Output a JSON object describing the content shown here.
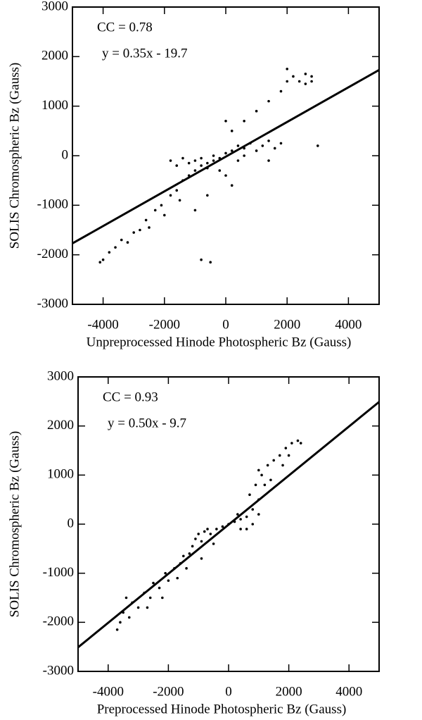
{
  "chart_data": [
    {
      "type": "scatter",
      "annotations": [
        "CC = 0.78",
        "y = 0.35x - 19.7"
      ],
      "x_label": "Unpreprocessed Hinode Photospheric Bz (Gauss)",
      "y_label": "SOLIS Chromospheric Bz  (Gauss)",
      "color": "#000000",
      "xlim": [
        -5000,
        5000
      ],
      "ylim": [
        -3000,
        3000
      ],
      "xticks": [
        -4000,
        -2000,
        0,
        2000,
        4000
      ],
      "yticks": [
        -3000,
        -2000,
        -1000,
        0,
        1000,
        2000,
        3000
      ],
      "x": [
        -4100,
        -4000,
        -3800,
        -3600,
        -3400,
        -3200,
        -3000,
        -2800,
        -2600,
        -2500,
        -2300,
        -2100,
        -2000,
        -1800,
        -1600,
        -1500,
        -1400,
        -1200,
        -1000,
        -800,
        -600,
        -400,
        -1800,
        -1600,
        -1400,
        -1200,
        -1000,
        -800,
        -600,
        -400,
        -200,
        0,
        200,
        400,
        600,
        800,
        1000,
        1200,
        1400,
        1600,
        1800,
        400,
        600,
        -200,
        0,
        200,
        -600,
        -1000,
        -800,
        -500,
        0,
        200,
        600,
        1000,
        1400,
        1800,
        2000,
        2200,
        2400,
        2600,
        2800,
        2000,
        2600,
        3000,
        1400,
        2800
      ],
      "y": [
        -2150,
        -2100,
        -1950,
        -1850,
        -1700,
        -1750,
        -1550,
        -1500,
        -1300,
        -1450,
        -1100,
        -1000,
        -1200,
        -800,
        -700,
        -900,
        -500,
        -400,
        -300,
        -200,
        -250,
        -100,
        -100,
        -200,
        -50,
        -150,
        -100,
        -50,
        -150,
        0,
        -50,
        50,
        100,
        200,
        150,
        250,
        100,
        200,
        300,
        150,
        250,
        -100,
        0,
        -300,
        -400,
        -600,
        -800,
        -1100,
        -2100,
        -2150,
        700,
        500,
        700,
        900,
        1100,
        1300,
        1500,
        1600,
        1500,
        1650,
        1600,
        1750,
        1450,
        200,
        -100,
        1500
      ],
      "fit_line": {
        "x": [
          -5000,
          5000
        ],
        "y": [
          -1769.7,
          1730.3
        ]
      }
    },
    {
      "type": "scatter",
      "annotations": [
        "CC = 0.93",
        "y = 0.50x - 9.7"
      ],
      "x_label": "Preprocessed Hinode Photospheric Bz (Gauss)",
      "y_label": "SOLIS Chromospheric Bz  (Gauss)",
      "color": "#000000",
      "xlim": [
        -5000,
        5000
      ],
      "ylim": [
        -3000,
        3000
      ],
      "xticks": [
        -4000,
        -2000,
        0,
        2000,
        4000
      ],
      "yticks": [
        -3000,
        -2000,
        -1000,
        0,
        1000,
        2000,
        3000
      ],
      "x": [
        -3700,
        -3600,
        -3500,
        -3300,
        -3200,
        -3000,
        -2800,
        -2600,
        -2500,
        -2300,
        -2100,
        -2000,
        -1800,
        -1600,
        -1500,
        -1300,
        -1200,
        -1100,
        -1000,
        -900,
        -800,
        -600,
        -400,
        -200,
        0,
        200,
        400,
        600,
        800,
        1000,
        600,
        800,
        1000,
        700,
        900,
        1100,
        1300,
        1500,
        1700,
        1900,
        2100,
        2300,
        2400,
        1800,
        2000,
        1200,
        1000,
        1400,
        -3400,
        -2700,
        -2200,
        -1700,
        -1400,
        -900,
        -500,
        400,
        300,
        -700
      ],
      "y": [
        -2150,
        -2000,
        -1800,
        -1900,
        -1600,
        -1700,
        -1400,
        -1500,
        -1200,
        -1300,
        -1000,
        -1150,
        -900,
        -800,
        -650,
        -600,
        -450,
        -300,
        -200,
        -350,
        -150,
        -200,
        -100,
        -50,
        0,
        50,
        100,
        150,
        300,
        500,
        -100,
        0,
        200,
        600,
        800,
        1000,
        1200,
        1300,
        1400,
        1550,
        1650,
        1700,
        1650,
        1200,
        1400,
        800,
        1100,
        900,
        -1500,
        -1700,
        -1500,
        -1100,
        -900,
        -700,
        -400,
        -100,
        200,
        -100
      ],
      "fit_line": {
        "x": [
          -5000,
          5000
        ],
        "y": [
          -2509.7,
          2490.3
        ]
      }
    }
  ]
}
